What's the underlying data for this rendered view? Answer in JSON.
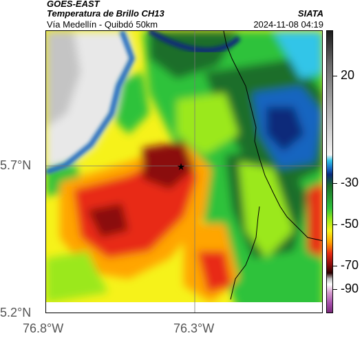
{
  "header": {
    "agency": "GOES-EAST",
    "product": "Temperatura de Brillo CH13",
    "subtitle": "Vía Medellín - Quibdó 50km",
    "source": "SIATA",
    "datetime": "2024-11-08 04:19"
  },
  "axes": {
    "lat_labels": [
      "5.7°N",
      "5.2°N"
    ],
    "lon_labels": [
      "76.8°W",
      "76.3°W"
    ]
  },
  "colorbar": {
    "labels": [
      "20",
      "-30",
      "-50",
      "-70",
      "-90"
    ],
    "stops": [
      {
        "color": "#1a1a1a"
      },
      {
        "color": "#dcdcdc"
      },
      {
        "color": "#33c5e8"
      },
      {
        "color": "#0a2a7a"
      },
      {
        "color": "#2fc23a"
      },
      {
        "color": "#f6f21a"
      },
      {
        "color": "#e82a12"
      },
      {
        "color": "#2a0000"
      },
      {
        "color": "#ffffff"
      },
      {
        "color": "#a24aa8"
      }
    ]
  },
  "map": {
    "marker_icon": "star-icon",
    "colors": {
      "cold_cloud": "#e8e8e8",
      "deep_blue": "#0a2a7a",
      "blue": "#1565c0",
      "cyan": "#33c5e8",
      "dark_green": "#1b6e2a",
      "green": "#2fc23a",
      "lime": "#9be81a",
      "yellow": "#f6f21a",
      "orange": "#ffa500",
      "red": "#e82a12",
      "dark_red": "#8b0c0c"
    }
  }
}
